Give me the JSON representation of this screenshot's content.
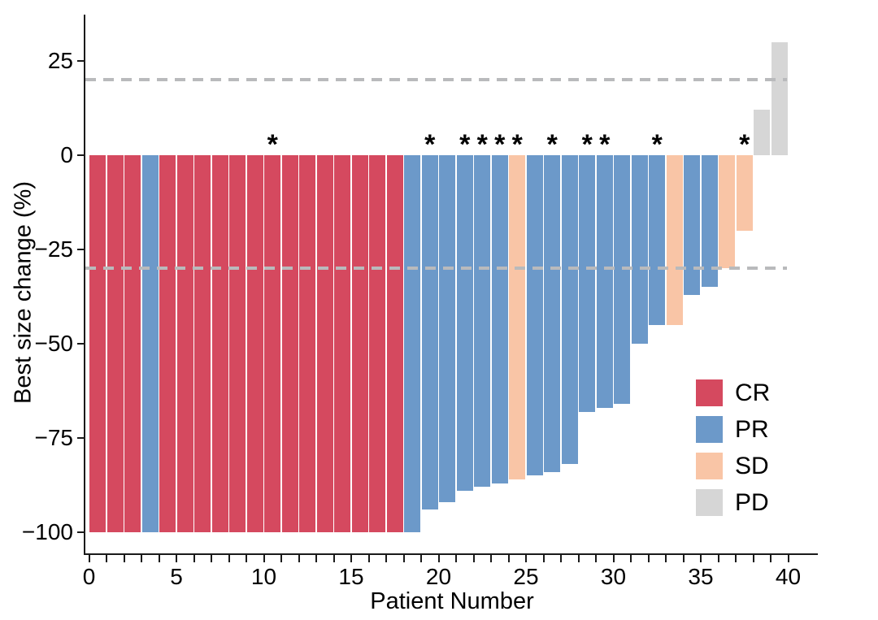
{
  "chart_data": {
    "type": "bar",
    "subtype": "waterfall-best-response",
    "title": "",
    "xlabel": "Patient Number",
    "ylabel": "Best size change (%)",
    "ylim": [
      -105,
      35
    ],
    "grid": false,
    "legend_position": "inside-right",
    "x_axis": {
      "tick_step_minor": 1,
      "tick_labels": [
        "0",
        "5",
        "10",
        "15",
        "20",
        "25",
        "30",
        "35",
        "40"
      ],
      "tick_label_values": [
        0,
        5,
        10,
        15,
        20,
        25,
        30,
        35,
        40
      ],
      "range": [
        0,
        40
      ]
    },
    "y_axis": {
      "tick_values": [
        25,
        0,
        -25,
        -50,
        -75,
        -100
      ],
      "tick_labels": [
        "25",
        "0",
        "−25",
        "−50",
        "−75",
        "−100"
      ]
    },
    "reference_lines": [
      {
        "value": 20,
        "style": "dashed",
        "color": "#b9babc"
      },
      {
        "value": -30,
        "style": "dashed",
        "color": "#b9babc"
      }
    ],
    "legend": [
      {
        "label": "CR",
        "color": "#d5495f"
      },
      {
        "label": "PR",
        "color": "#6c99c9"
      },
      {
        "label": "SD",
        "color": "#f9c5a6"
      },
      {
        "label": "PD",
        "color": "#d6d6d6"
      }
    ],
    "annotation_glyph": "*",
    "bars": [
      {
        "patient": 1,
        "value": -100,
        "response": "CR",
        "asterisk": false
      },
      {
        "patient": 2,
        "value": -100,
        "response": "CR",
        "asterisk": false
      },
      {
        "patient": 3,
        "value": -100,
        "response": "CR",
        "asterisk": false
      },
      {
        "patient": 4,
        "value": -100,
        "response": "PR",
        "asterisk": false
      },
      {
        "patient": 5,
        "value": -100,
        "response": "CR",
        "asterisk": false
      },
      {
        "patient": 6,
        "value": -100,
        "response": "CR",
        "asterisk": false
      },
      {
        "patient": 7,
        "value": -100,
        "response": "CR",
        "asterisk": false
      },
      {
        "patient": 8,
        "value": -100,
        "response": "CR",
        "asterisk": false
      },
      {
        "patient": 9,
        "value": -100,
        "response": "CR",
        "asterisk": false
      },
      {
        "patient": 10,
        "value": -100,
        "response": "CR",
        "asterisk": false
      },
      {
        "patient": 11,
        "value": -100,
        "response": "CR",
        "asterisk": true
      },
      {
        "patient": 12,
        "value": -100,
        "response": "CR",
        "asterisk": false
      },
      {
        "patient": 13,
        "value": -100,
        "response": "CR",
        "asterisk": false
      },
      {
        "patient": 14,
        "value": -100,
        "response": "CR",
        "asterisk": false
      },
      {
        "patient": 15,
        "value": -100,
        "response": "CR",
        "asterisk": false
      },
      {
        "patient": 16,
        "value": -100,
        "response": "CR",
        "asterisk": false
      },
      {
        "patient": 17,
        "value": -100,
        "response": "CR",
        "asterisk": false
      },
      {
        "patient": 18,
        "value": -100,
        "response": "CR",
        "asterisk": false
      },
      {
        "patient": 19,
        "value": -100,
        "response": "PR",
        "asterisk": false
      },
      {
        "patient": 20,
        "value": -94,
        "response": "PR",
        "asterisk": true
      },
      {
        "patient": 21,
        "value": -92,
        "response": "PR",
        "asterisk": false
      },
      {
        "patient": 22,
        "value": -89,
        "response": "PR",
        "asterisk": true
      },
      {
        "patient": 23,
        "value": -88,
        "response": "PR",
        "asterisk": true
      },
      {
        "patient": 24,
        "value": -87,
        "response": "PR",
        "asterisk": true
      },
      {
        "patient": 25,
        "value": -86,
        "response": "SD",
        "asterisk": true
      },
      {
        "patient": 26,
        "value": -85,
        "response": "PR",
        "asterisk": false
      },
      {
        "patient": 27,
        "value": -84,
        "response": "PR",
        "asterisk": true
      },
      {
        "patient": 28,
        "value": -82,
        "response": "PR",
        "asterisk": false
      },
      {
        "patient": 29,
        "value": -68,
        "response": "PR",
        "asterisk": true
      },
      {
        "patient": 30,
        "value": -67,
        "response": "PR",
        "asterisk": true
      },
      {
        "patient": 31,
        "value": -66,
        "response": "PR",
        "asterisk": false
      },
      {
        "patient": 32,
        "value": -50,
        "response": "PR",
        "asterisk": false
      },
      {
        "patient": 33,
        "value": -45,
        "response": "PR",
        "asterisk": true
      },
      {
        "patient": 34,
        "value": -45,
        "response": "SD",
        "asterisk": false
      },
      {
        "patient": 35,
        "value": -37,
        "response": "PR",
        "asterisk": false
      },
      {
        "patient": 36,
        "value": -35,
        "response": "PR",
        "asterisk": false
      },
      {
        "patient": 37,
        "value": -30,
        "response": "SD",
        "asterisk": false
      },
      {
        "patient": 38,
        "value": -20,
        "response": "SD",
        "asterisk": true
      },
      {
        "patient": 39,
        "value": 12,
        "response": "PD",
        "asterisk": false
      },
      {
        "patient": 40,
        "value": 30,
        "response": "PD",
        "asterisk": false
      }
    ]
  }
}
